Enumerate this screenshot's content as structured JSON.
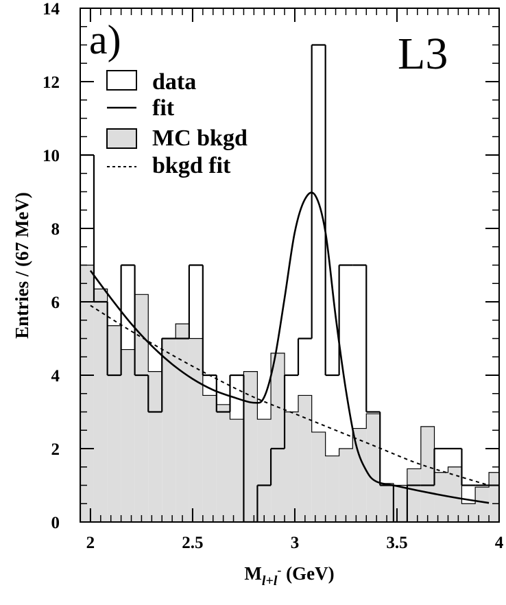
{
  "chart_data": {
    "type": "histogram",
    "panel_label": "a)",
    "experiment_label": "L3",
    "xlabel": {
      "main": "M",
      "sub": "l+l",
      "sup": "-",
      "suffix": " (GeV)"
    },
    "ylabel": "Entries / (67 MeV)",
    "xlim": [
      1.95,
      4.0
    ],
    "ylim": [
      0,
      14
    ],
    "x_ticks": [
      2,
      2.5,
      3,
      3.5,
      4
    ],
    "x_tick_labels": [
      "2",
      "2.5",
      "3",
      "3.5",
      "4"
    ],
    "y_ticks": [
      0,
      2,
      4,
      6,
      8,
      10,
      12,
      14
    ],
    "y_tick_labels": [
      "0",
      "2",
      "4",
      "6",
      "8",
      "10",
      "12",
      "14"
    ],
    "bin_edges": [
      1.95,
      2.017,
      2.083,
      2.15,
      2.217,
      2.283,
      2.35,
      2.417,
      2.483,
      2.55,
      2.617,
      2.683,
      2.75,
      2.817,
      2.883,
      2.95,
      3.017,
      3.083,
      3.15,
      3.217,
      3.283,
      3.35,
      3.417,
      3.483,
      3.55,
      3.617,
      3.683,
      3.75,
      3.817,
      3.883,
      3.95,
      4.0
    ],
    "series": [
      {
        "name": "data",
        "style": "step-outline",
        "values": [
          10,
          6,
          4,
          7,
          4,
          3,
          5,
          5,
          7,
          4,
          3,
          4,
          0,
          1,
          2,
          4,
          5,
          13,
          4,
          7,
          7,
          3,
          1,
          0,
          1,
          1,
          2,
          2,
          1,
          1,
          1
        ]
      },
      {
        "name": "fit",
        "style": "solid-line",
        "x": [
          2.0,
          2.1,
          2.2,
          2.3,
          2.4,
          2.5,
          2.6,
          2.7,
          2.8,
          2.85,
          2.9,
          2.95,
          3.0,
          3.05,
          3.1,
          3.15,
          3.2,
          3.25,
          3.3,
          3.35,
          3.4,
          3.5,
          3.6,
          3.7,
          3.8,
          3.95
        ],
        "y": [
          6.85,
          6.1,
          5.4,
          4.8,
          4.3,
          3.9,
          3.6,
          3.4,
          3.25,
          3.4,
          4.4,
          6.1,
          7.9,
          8.8,
          8.9,
          7.9,
          5.6,
          3.6,
          2.1,
          1.4,
          1.1,
          0.98,
          0.86,
          0.75,
          0.65,
          0.52
        ]
      },
      {
        "name": "MC bkgd",
        "style": "filled-step",
        "values": [
          7,
          6.35,
          5.35,
          4.7,
          6.2,
          4.1,
          5,
          5.4,
          5,
          3.45,
          3.2,
          2.8,
          4.1,
          2.8,
          4.6,
          3,
          3.45,
          2.45,
          1.8,
          2,
          2.55,
          2.95,
          1.05,
          1,
          1.45,
          2.6,
          1.35,
          1.5,
          0.5,
          0.95,
          1.35
        ]
      },
      {
        "name": "bkgd fit",
        "style": "dashed-line",
        "x": [
          2.0,
          2.2,
          2.4,
          2.6,
          2.8,
          3.0,
          3.2,
          3.4,
          3.6,
          3.8,
          3.95
        ],
        "y": [
          5.9,
          5.2,
          4.55,
          3.95,
          3.4,
          2.95,
          2.5,
          2.05,
          1.6,
          1.25,
          1.0
        ]
      }
    ],
    "legend": {
      "position": "top-left",
      "entries": [
        {
          "label": "data",
          "symbol": "box"
        },
        {
          "label": "fit",
          "symbol": "line"
        },
        {
          "label": "MC bkgd",
          "symbol": "filled-box"
        },
        {
          "label": "bkgd fit",
          "symbol": "dashed-line"
        }
      ]
    },
    "colors": {
      "fill": "#dddddd",
      "line": "#000000"
    }
  }
}
